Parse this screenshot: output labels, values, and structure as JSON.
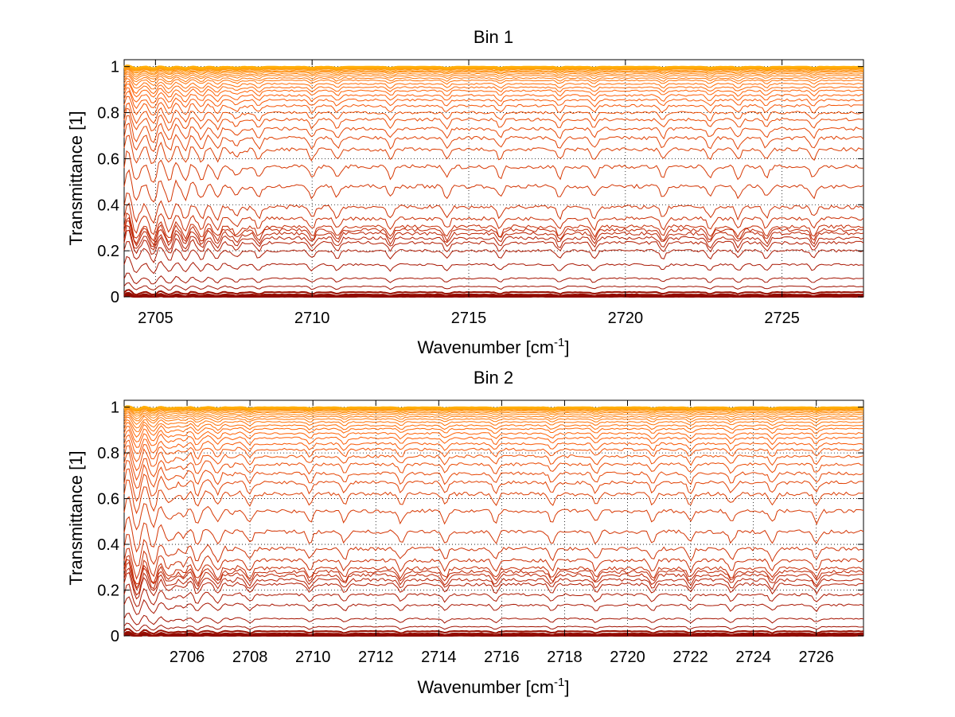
{
  "chart_data": [
    {
      "type": "line",
      "title": "Bin 1",
      "xlabel": {
        "prefix": "Wavenumber [cm",
        "sup": "-1",
        "suffix": "]"
      },
      "ylabel": "Transmittance [1]",
      "xlim": [
        2704.0,
        2727.6
      ],
      "ylim": [
        0,
        1.03
      ],
      "xticks": [
        2705,
        2710,
        2715,
        2720,
        2725
      ],
      "yticks": [
        0,
        0.2,
        0.4,
        0.6,
        0.8,
        1
      ],
      "ytick_labels": [
        "0",
        "0.2",
        "0.4",
        "0.6",
        "0.8",
        "1"
      ],
      "grid": "dotted",
      "series_count": 40,
      "series_levels": [
        0.0,
        0.005,
        0.01,
        0.02,
        0.045,
        0.08,
        0.14,
        0.2,
        0.235,
        0.255,
        0.275,
        0.29,
        0.305,
        0.34,
        0.39,
        0.48,
        0.565,
        0.64,
        0.69,
        0.73,
        0.77,
        0.8,
        0.83,
        0.855,
        0.875,
        0.895,
        0.91,
        0.925,
        0.94,
        0.95,
        0.96,
        0.968,
        0.975,
        0.98,
        0.985,
        0.989,
        0.992,
        0.995,
        0.997,
        0.999
      ],
      "absorption_lines": [
        2704.6,
        2705.0,
        2705.5,
        2706.0,
        2706.5,
        2707.0,
        2707.6,
        2708.3,
        2710.0,
        2710.8,
        2712.5,
        2714.3,
        2716.0,
        2717.9,
        2719.0,
        2721.2,
        2722.7,
        2723.6,
        2724.5,
        2726.0
      ]
    },
    {
      "type": "line",
      "title": "Bin 2",
      "xlabel": {
        "prefix": "Wavenumber [cm",
        "sup": "-1",
        "suffix": "]"
      },
      "ylabel": "Transmittance [1]",
      "xlim": [
        2704.0,
        2727.5
      ],
      "ylim": [
        0,
        1.03
      ],
      "xticks": [
        2706,
        2708,
        2710,
        2712,
        2714,
        2716,
        2718,
        2720,
        2722,
        2724,
        2726
      ],
      "yticks": [
        0,
        0.2,
        0.4,
        0.6,
        0.8,
        1
      ],
      "ytick_labels": [
        "0",
        "0.2",
        "0.4",
        "0.6",
        "0.8",
        "1"
      ],
      "grid": "dotted",
      "series_count": 40,
      "series_levels": [
        0.0,
        0.005,
        0.01,
        0.02,
        0.04,
        0.075,
        0.135,
        0.18,
        0.225,
        0.245,
        0.265,
        0.28,
        0.295,
        0.33,
        0.38,
        0.455,
        0.545,
        0.62,
        0.67,
        0.71,
        0.75,
        0.785,
        0.815,
        0.84,
        0.865,
        0.885,
        0.905,
        0.92,
        0.935,
        0.948,
        0.958,
        0.967,
        0.975,
        0.981,
        0.986,
        0.99,
        0.993,
        0.996,
        0.998,
        0.999
      ],
      "absorption_lines": [
        2704.5,
        2705.0,
        2705.6,
        2706.3,
        2707.0,
        2708.0,
        2709.9,
        2711.0,
        2712.8,
        2714.2,
        2715.8,
        2717.6,
        2719.0,
        2720.8,
        2722.0,
        2723.3,
        2724.6,
        2726.0
      ]
    }
  ]
}
